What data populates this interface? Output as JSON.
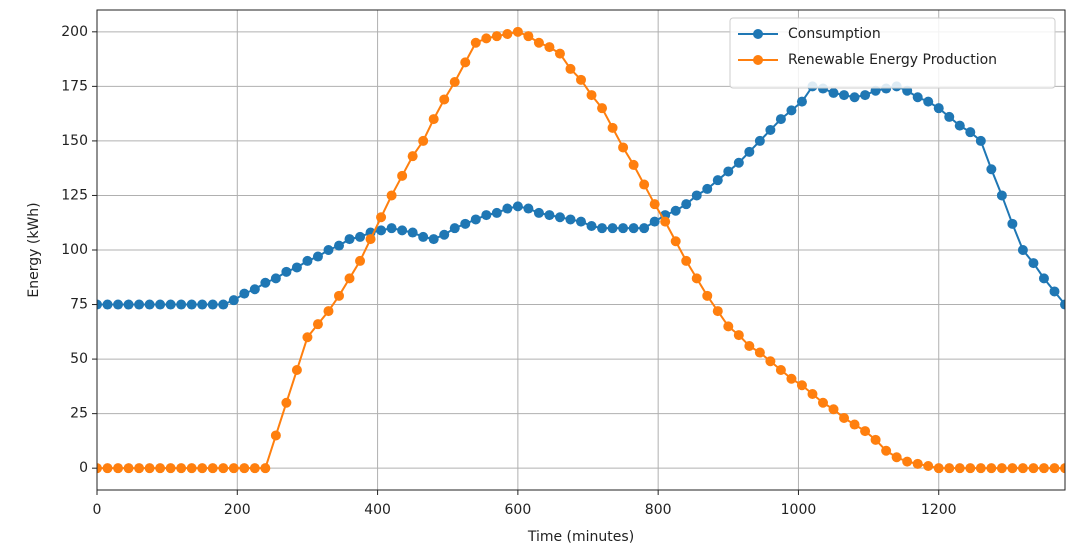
{
  "chart_data": {
    "type": "line",
    "xlabel": "Time (minutes)",
    "ylabel": "Energy (kWh)",
    "x": [
      0,
      15,
      30,
      45,
      60,
      75,
      90,
      105,
      120,
      135,
      150,
      165,
      180,
      195,
      210,
      225,
      240,
      255,
      270,
      285,
      300,
      315,
      330,
      345,
      360,
      375,
      390,
      405,
      420,
      435,
      450,
      465,
      480,
      495,
      510,
      525,
      540,
      555,
      570,
      585,
      600,
      615,
      630,
      645,
      660,
      675,
      690,
      705,
      720,
      735,
      750,
      765,
      780,
      795,
      810,
      825,
      840,
      855,
      870,
      885,
      900,
      915,
      930,
      945,
      960,
      975,
      990,
      1005,
      1020,
      1035,
      1050,
      1065,
      1080,
      1095,
      1110,
      1125,
      1140,
      1155,
      1170,
      1185,
      1200,
      1215,
      1230,
      1245,
      1260,
      1275,
      1290,
      1305,
      1320,
      1335,
      1350,
      1365,
      1380
    ],
    "series": [
      {
        "name": "Consumption",
        "color": "#1f77b4",
        "values": [
          75,
          75,
          75,
          75,
          75,
          75,
          75,
          75,
          75,
          75,
          75,
          75,
          75,
          77,
          80,
          82,
          85,
          87,
          90,
          92,
          95,
          97,
          100,
          102,
          105,
          106,
          108,
          109,
          110,
          109,
          108,
          106,
          105,
          107,
          110,
          112,
          114,
          116,
          117,
          119,
          120,
          119,
          117,
          116,
          115,
          114,
          113,
          111,
          110,
          110,
          110,
          110,
          110,
          113,
          116,
          118,
          121,
          125,
          128,
          132,
          136,
          140,
          145,
          150,
          155,
          160,
          164,
          168,
          175,
          174,
          172,
          171,
          170,
          171,
          173,
          174,
          175,
          173,
          170,
          168,
          165,
          161,
          157,
          154,
          150,
          137,
          125,
          112,
          100,
          94,
          87,
          81,
          75
        ]
      },
      {
        "name": "Renewable Energy Production",
        "color": "#ff7f0e",
        "values": [
          0,
          0,
          0,
          0,
          0,
          0,
          0,
          0,
          0,
          0,
          0,
          0,
          0,
          0,
          0,
          0,
          0,
          15,
          30,
          45,
          60,
          66,
          72,
          79,
          87,
          95,
          105,
          115,
          125,
          134,
          143,
          150,
          160,
          169,
          177,
          186,
          195,
          197,
          198,
          199,
          200,
          198,
          195,
          193,
          190,
          183,
          178,
          171,
          165,
          156,
          147,
          139,
          130,
          121,
          113,
          104,
          95,
          87,
          79,
          72,
          65,
          61,
          56,
          53,
          49,
          45,
          41,
          38,
          34,
          30,
          27,
          23,
          20,
          17,
          13,
          8,
          5,
          3,
          2,
          1,
          0,
          0,
          0,
          0,
          0,
          0,
          0,
          0,
          0,
          0,
          0,
          0,
          0
        ]
      }
    ],
    "xlim": [
      0,
      1380
    ],
    "xticks": [
      0,
      200,
      400,
      600,
      800,
      1000,
      1200
    ],
    "ylim": [
      -10,
      210
    ],
    "yticks": [
      0,
      25,
      50,
      75,
      100,
      125,
      150,
      175,
      200
    ],
    "grid": true,
    "legend": "upper right"
  }
}
